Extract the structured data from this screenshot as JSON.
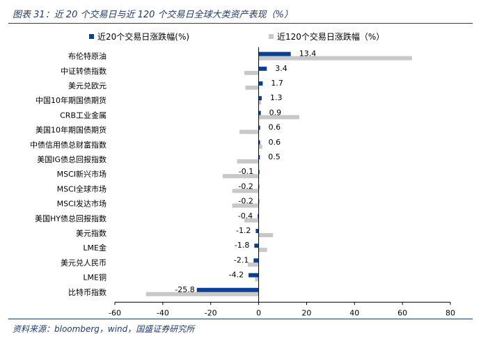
{
  "figure": {
    "title": "图表 31：近 20 个交易日与近 120 个交易日全球大类资产表现（%）",
    "source": "资料来源：bloomberg，wind，国盛证券研究所"
  },
  "colors": {
    "series_20d": "#0b3f91",
    "series_120d": "#c8c8c8",
    "title_text": "#1f3a6e"
  },
  "chart_data": {
    "type": "bar",
    "orientation": "horizontal",
    "categories": [
      "布伦特原油",
      "中证转债指数",
      "美元兑欧元",
      "中国10年期国债期货",
      "CRB工业金属",
      "美国10年期国债期货",
      "中债信用债总财富指数",
      "美国IG债总回报指数",
      "MSCI新兴市场",
      "MSCI全球市场",
      "MSCI发达市场",
      "美国HY债总回报指数",
      "美元指数",
      "LME金",
      "美元兑人民币",
      "LME铜",
      "比特币指数"
    ],
    "series": [
      {
        "name": "近20个交易日涨跌幅(%)",
        "values": [
          13.4,
          3.4,
          1.7,
          1.3,
          0.9,
          0.6,
          0.6,
          0.5,
          -0.1,
          -0.2,
          -0.2,
          -0.4,
          -1.2,
          -1.8,
          -2.1,
          -4.2,
          -25.8
        ],
        "labels": [
          "13.4",
          "3.4",
          "1.7",
          "1.3",
          "0.9",
          "0.6",
          "0.6",
          "0.5",
          "-0.1",
          "-0.2",
          "-0.2",
          "-0.4",
          "-1.2",
          "-1.8",
          "-2.1",
          "-4.2",
          "-25.8"
        ]
      },
      {
        "name": "近120个交易日涨跌幅（%）",
        "values": [
          64.0,
          -6.0,
          -5.5,
          1.0,
          17.0,
          -8.0,
          1.5,
          -9.0,
          -15.0,
          -11.0,
          -11.0,
          -6.0,
          6.0,
          3.5,
          -4.5,
          -1.5,
          -47.0
        ]
      }
    ],
    "xlim": [
      -60,
      80
    ],
    "xticks": [
      -60,
      -40,
      -20,
      0,
      20,
      40,
      60,
      80
    ],
    "xtick_labels": [
      "-60",
      "-40",
      "-20",
      "0",
      "20",
      "40",
      "60",
      "80"
    ],
    "grid": false,
    "legend": "top"
  }
}
